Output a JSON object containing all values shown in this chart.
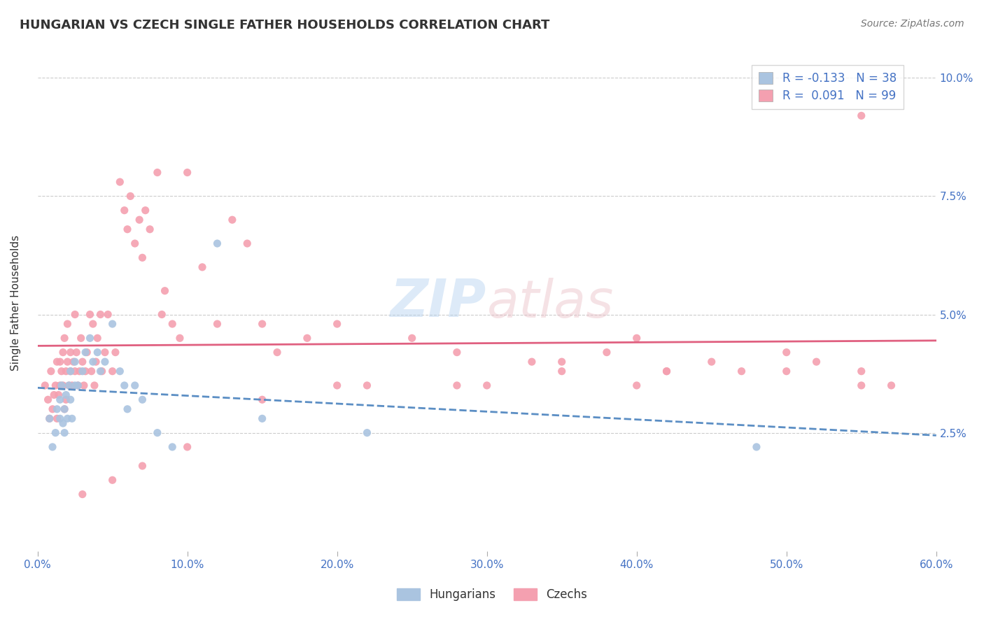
{
  "title": "HUNGARIAN VS CZECH SINGLE FATHER HOUSEHOLDS CORRELATION CHART",
  "source": "Source: ZipAtlas.com",
  "xlabel": "",
  "ylabel": "Single Father Households",
  "xlim": [
    0.0,
    0.6
  ],
  "ylim": [
    0.0,
    0.105
  ],
  "yticks": [
    0.025,
    0.05,
    0.075,
    0.1
  ],
  "ytick_labels": [
    "2.5%",
    "5.0%",
    "7.5%",
    "10.0%"
  ],
  "xticks": [
    0.0,
    0.1,
    0.2,
    0.3,
    0.4,
    0.5,
    0.6
  ],
  "xtick_labels": [
    "0.0%",
    "10.0%",
    "20.0%",
    "30.0%",
    "40.0%",
    "50.0%",
    "60.0%"
  ],
  "grid_color": "#cccccc",
  "background_color": "#ffffff",
  "hungarian_color": "#aac4e0",
  "czech_color": "#f4a0b0",
  "hungarian_R": -0.133,
  "hungarian_N": 38,
  "czech_R": 0.091,
  "czech_N": 99,
  "trend_blue": "#5b8ec4",
  "trend_pink": "#e06080",
  "legend_label_hungarian": "Hungarians",
  "legend_label_czech": "Czechs",
  "label_color": "#4472c4",
  "hungarian_x": [
    0.008,
    0.01,
    0.012,
    0.013,
    0.015,
    0.015,
    0.016,
    0.017,
    0.018,
    0.018,
    0.019,
    0.02,
    0.021,
    0.022,
    0.022,
    0.023,
    0.025,
    0.025,
    0.027,
    0.03,
    0.032,
    0.035,
    0.037,
    0.04,
    0.042,
    0.045,
    0.05,
    0.055,
    0.058,
    0.06,
    0.065,
    0.07,
    0.08,
    0.09,
    0.12,
    0.15,
    0.22,
    0.48
  ],
  "hungarian_y": [
    0.028,
    0.022,
    0.025,
    0.03,
    0.032,
    0.028,
    0.035,
    0.027,
    0.025,
    0.03,
    0.033,
    0.028,
    0.035,
    0.032,
    0.038,
    0.028,
    0.04,
    0.035,
    0.035,
    0.038,
    0.042,
    0.045,
    0.04,
    0.042,
    0.038,
    0.04,
    0.048,
    0.038,
    0.035,
    0.03,
    0.035,
    0.032,
    0.025,
    0.022,
    0.065,
    0.028,
    0.025,
    0.022
  ],
  "czech_x": [
    0.005,
    0.007,
    0.008,
    0.009,
    0.01,
    0.011,
    0.012,
    0.013,
    0.013,
    0.014,
    0.015,
    0.015,
    0.016,
    0.017,
    0.017,
    0.018,
    0.018,
    0.019,
    0.019,
    0.02,
    0.02,
    0.021,
    0.022,
    0.022,
    0.023,
    0.024,
    0.025,
    0.025,
    0.026,
    0.027,
    0.028,
    0.029,
    0.03,
    0.031,
    0.032,
    0.033,
    0.035,
    0.036,
    0.037,
    0.038,
    0.039,
    0.04,
    0.042,
    0.043,
    0.045,
    0.047,
    0.05,
    0.052,
    0.055,
    0.058,
    0.06,
    0.062,
    0.065,
    0.068,
    0.07,
    0.072,
    0.075,
    0.08,
    0.083,
    0.085,
    0.09,
    0.095,
    0.1,
    0.11,
    0.12,
    0.13,
    0.14,
    0.15,
    0.16,
    0.18,
    0.2,
    0.22,
    0.25,
    0.28,
    0.3,
    0.33,
    0.35,
    0.38,
    0.4,
    0.42,
    0.45,
    0.47,
    0.5,
    0.52,
    0.55,
    0.57,
    0.4,
    0.42,
    0.5,
    0.55,
    0.35,
    0.28,
    0.2,
    0.15,
    0.1,
    0.07,
    0.05,
    0.03,
    0.55
  ],
  "czech_y": [
    0.035,
    0.032,
    0.028,
    0.038,
    0.03,
    0.033,
    0.035,
    0.028,
    0.04,
    0.033,
    0.035,
    0.04,
    0.038,
    0.042,
    0.035,
    0.03,
    0.045,
    0.038,
    0.032,
    0.04,
    0.048,
    0.035,
    0.042,
    0.038,
    0.035,
    0.04,
    0.038,
    0.05,
    0.042,
    0.035,
    0.038,
    0.045,
    0.04,
    0.035,
    0.038,
    0.042,
    0.05,
    0.038,
    0.048,
    0.035,
    0.04,
    0.045,
    0.05,
    0.038,
    0.042,
    0.05,
    0.038,
    0.042,
    0.078,
    0.072,
    0.068,
    0.075,
    0.065,
    0.07,
    0.062,
    0.072,
    0.068,
    0.08,
    0.05,
    0.055,
    0.048,
    0.045,
    0.08,
    0.06,
    0.048,
    0.07,
    0.065,
    0.048,
    0.042,
    0.045,
    0.048,
    0.035,
    0.045,
    0.042,
    0.035,
    0.04,
    0.04,
    0.042,
    0.045,
    0.038,
    0.04,
    0.038,
    0.042,
    0.04,
    0.038,
    0.035,
    0.035,
    0.038,
    0.038,
    0.035,
    0.038,
    0.035,
    0.035,
    0.032,
    0.022,
    0.018,
    0.015,
    0.012,
    0.092
  ]
}
